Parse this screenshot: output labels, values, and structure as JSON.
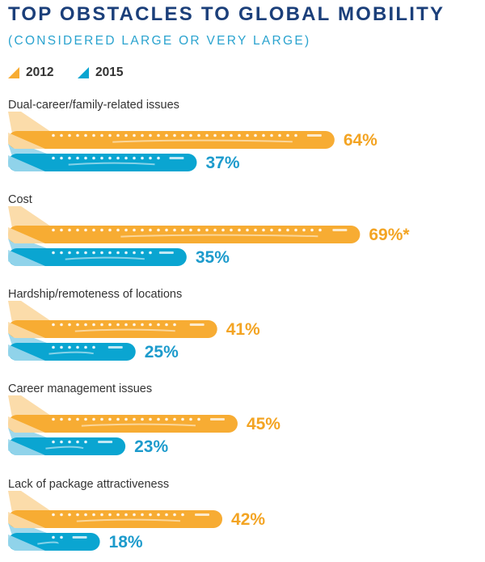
{
  "header": {
    "title": "TOP OBSTACLES TO GLOBAL MOBILITY",
    "subtitle": "(CONSIDERED LARGE OR VERY LARGE)"
  },
  "legend": [
    {
      "label": "2012",
      "color": "#f7ac33"
    },
    {
      "label": "2015",
      "color": "#0aa5d1"
    }
  ],
  "colors": {
    "orange": "#f7ac33",
    "orange_tail": "#fbdcaa",
    "blue": "#0aa5d1",
    "blue_tail": "#9fd8ec",
    "value_orange": "#f3a423",
    "value_blue": "#1d9bcc"
  },
  "chart_data": {
    "type": "bar",
    "orientation": "horizontal",
    "title": "TOP OBSTACLES TO GLOBAL MOBILITY",
    "subtitle": "(CONSIDERED LARGE OR VERY LARGE)",
    "categories": [
      "Dual-career/family-related issues",
      "Cost",
      "Hardship/remoteness of locations",
      "Career management issues",
      "Lack of package attractiveness"
    ],
    "series": [
      {
        "name": "2012",
        "values": [
          64,
          69,
          41,
          45,
          42
        ],
        "labels": [
          "64%",
          "69%*",
          "41%",
          "45%",
          "42%"
        ]
      },
      {
        "name": "2015",
        "values": [
          37,
          35,
          25,
          23,
          18
        ],
        "labels": [
          "37%",
          "35%",
          "25%",
          "23%",
          "18%"
        ]
      }
    ],
    "legend": "top-left",
    "grid": false,
    "unit": "%"
  }
}
